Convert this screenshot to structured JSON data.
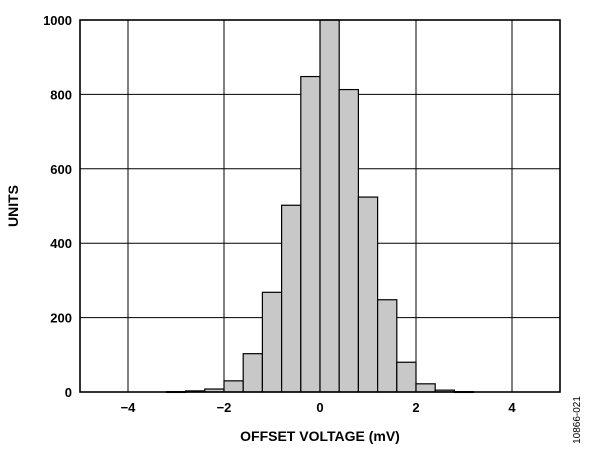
{
  "chart_data": {
    "type": "bar",
    "title": "",
    "xlabel": "OFFSET VOLTAGE (mV)",
    "ylabel": "UNITS",
    "xlim": [
      -5,
      5
    ],
    "ylim": [
      0,
      1000
    ],
    "xticks": [
      -4,
      -2,
      0,
      2,
      4
    ],
    "yticks": [
      0,
      200,
      400,
      600,
      800,
      1000
    ],
    "xtick_labels": [
      "−4",
      "−2",
      "0",
      "2",
      "4"
    ],
    "ytick_labels": [
      "0",
      "200",
      "400",
      "600",
      "800",
      "1000"
    ],
    "grid": true,
    "bin_width": 0.4,
    "bins": [
      {
        "x": -3.0,
        "value": 1
      },
      {
        "x": -2.6,
        "value": 3
      },
      {
        "x": -2.2,
        "value": 8
      },
      {
        "x": -1.8,
        "value": 30
      },
      {
        "x": -1.4,
        "value": 103
      },
      {
        "x": -1.0,
        "value": 268
      },
      {
        "x": -0.6,
        "value": 502
      },
      {
        "x": -0.2,
        "value": 848
      },
      {
        "x": 0.2,
        "value": 1000
      },
      {
        "x": 0.6,
        "value": 813
      },
      {
        "x": 1.0,
        "value": 524
      },
      {
        "x": 1.4,
        "value": 248
      },
      {
        "x": 1.8,
        "value": 80
      },
      {
        "x": 2.2,
        "value": 22
      },
      {
        "x": 2.6,
        "value": 5
      },
      {
        "x": 3.0,
        "value": 1
      }
    ]
  },
  "figure_id": "10866-021"
}
